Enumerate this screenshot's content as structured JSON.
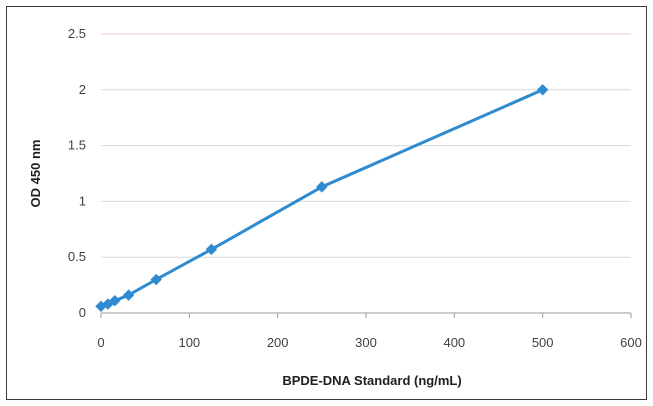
{
  "chart_data": {
    "type": "line",
    "title": "",
    "xlabel": "BPDE-DNA Standard (ng/mL)",
    "ylabel": "OD 450 nm",
    "xlim": [
      0,
      600
    ],
    "ylim": [
      0,
      2.5
    ],
    "x_ticks": [
      "0",
      "100",
      "200",
      "300",
      "400",
      "500",
      "600"
    ],
    "y_ticks": [
      "0",
      "0.5",
      "1",
      "1.5",
      "2",
      "2.5"
    ],
    "grid": "horizontal",
    "legend": "none",
    "series": [
      {
        "color": "#2e8bd0",
        "marker": "diamond",
        "x": [
          0,
          7.8,
          15.6,
          31.25,
          62.5,
          125,
          250,
          500
        ],
        "y": [
          0.06,
          0.08,
          0.11,
          0.16,
          0.3,
          0.57,
          1.13,
          2.0
        ]
      }
    ]
  }
}
